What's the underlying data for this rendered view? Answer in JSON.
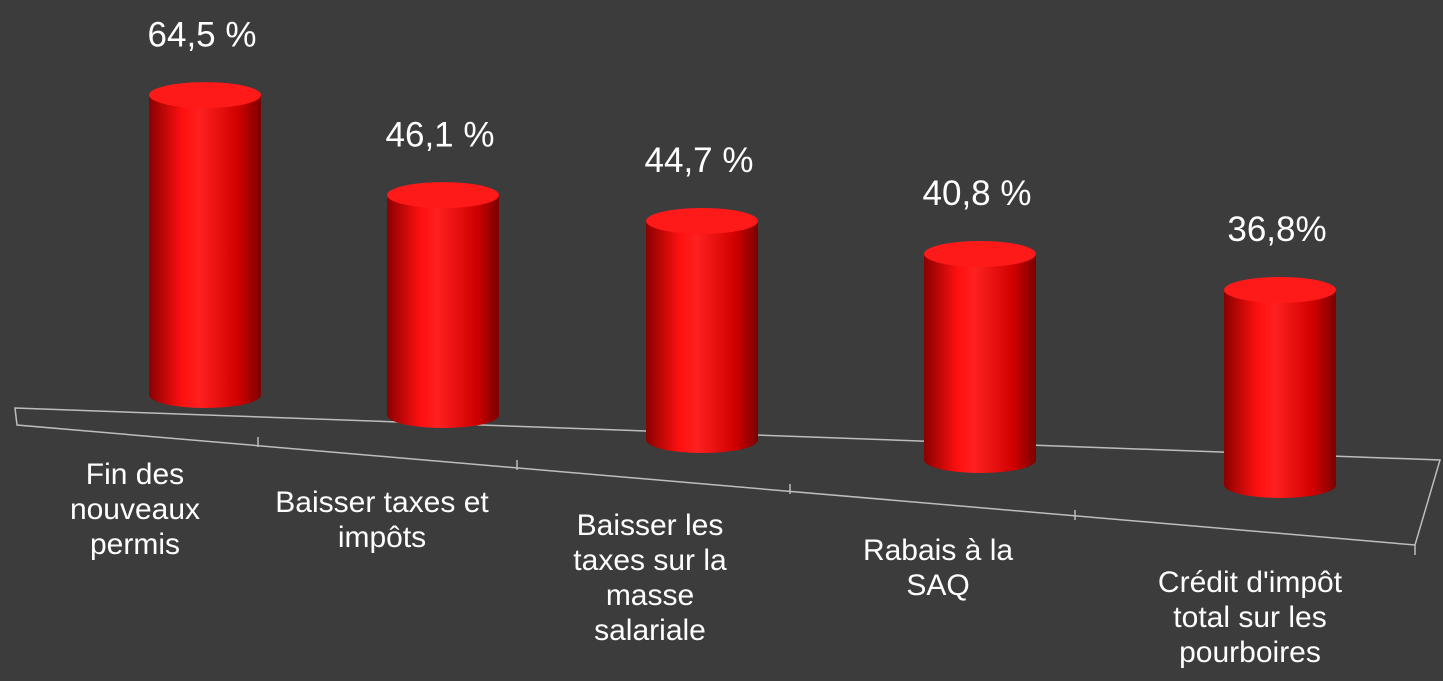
{
  "chart_data": {
    "type": "bar",
    "categories": [
      "Fin des nouveaux permis",
      "Baisser taxes et impôts",
      "Baisser les taxes sur la masse salariale",
      "Rabais à la SAQ",
      "Crédit d'impôt total sur les pourboires"
    ],
    "values": [
      64.5,
      46.1,
      44.7,
      40.8,
      36.8
    ],
    "value_labels": [
      "64,5 %",
      "46,1 %",
      "44,7 %",
      "40,8 %",
      "36,8%"
    ],
    "color": "#ff0000"
  }
}
